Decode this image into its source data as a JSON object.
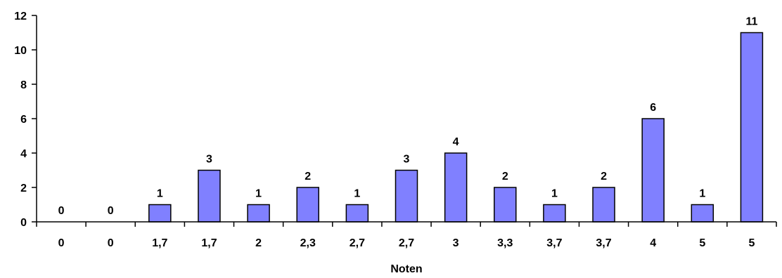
{
  "chart_data": {
    "type": "bar",
    "title": "",
    "xlabel": "Noten",
    "ylabel": "",
    "categories": [
      "0",
      "0",
      "1,7",
      "1,7",
      "2",
      "2,3",
      "2,7",
      "2,7",
      "3",
      "3,3",
      "3,7",
      "3,7",
      "4",
      "5",
      "5"
    ],
    "values": [
      0,
      0,
      1,
      3,
      1,
      2,
      1,
      3,
      4,
      2,
      1,
      2,
      6,
      1,
      11
    ],
    "data_labels": [
      "0",
      "0",
      "1",
      "3",
      "1",
      "2",
      "1",
      "3",
      "4",
      "2",
      "1",
      "2",
      "6",
      "1",
      "11"
    ],
    "ylim": [
      0,
      12
    ],
    "yticks": [
      0,
      2,
      4,
      6,
      8,
      10,
      12
    ],
    "ytick_labels": [
      "0",
      "2",
      "4",
      "6",
      "8",
      "10",
      "12"
    ],
    "grid": false,
    "legend": "none",
    "colors": {
      "bar_fill": "#8080ff",
      "bar_stroke": "#000000",
      "axis": "#000000"
    }
  }
}
